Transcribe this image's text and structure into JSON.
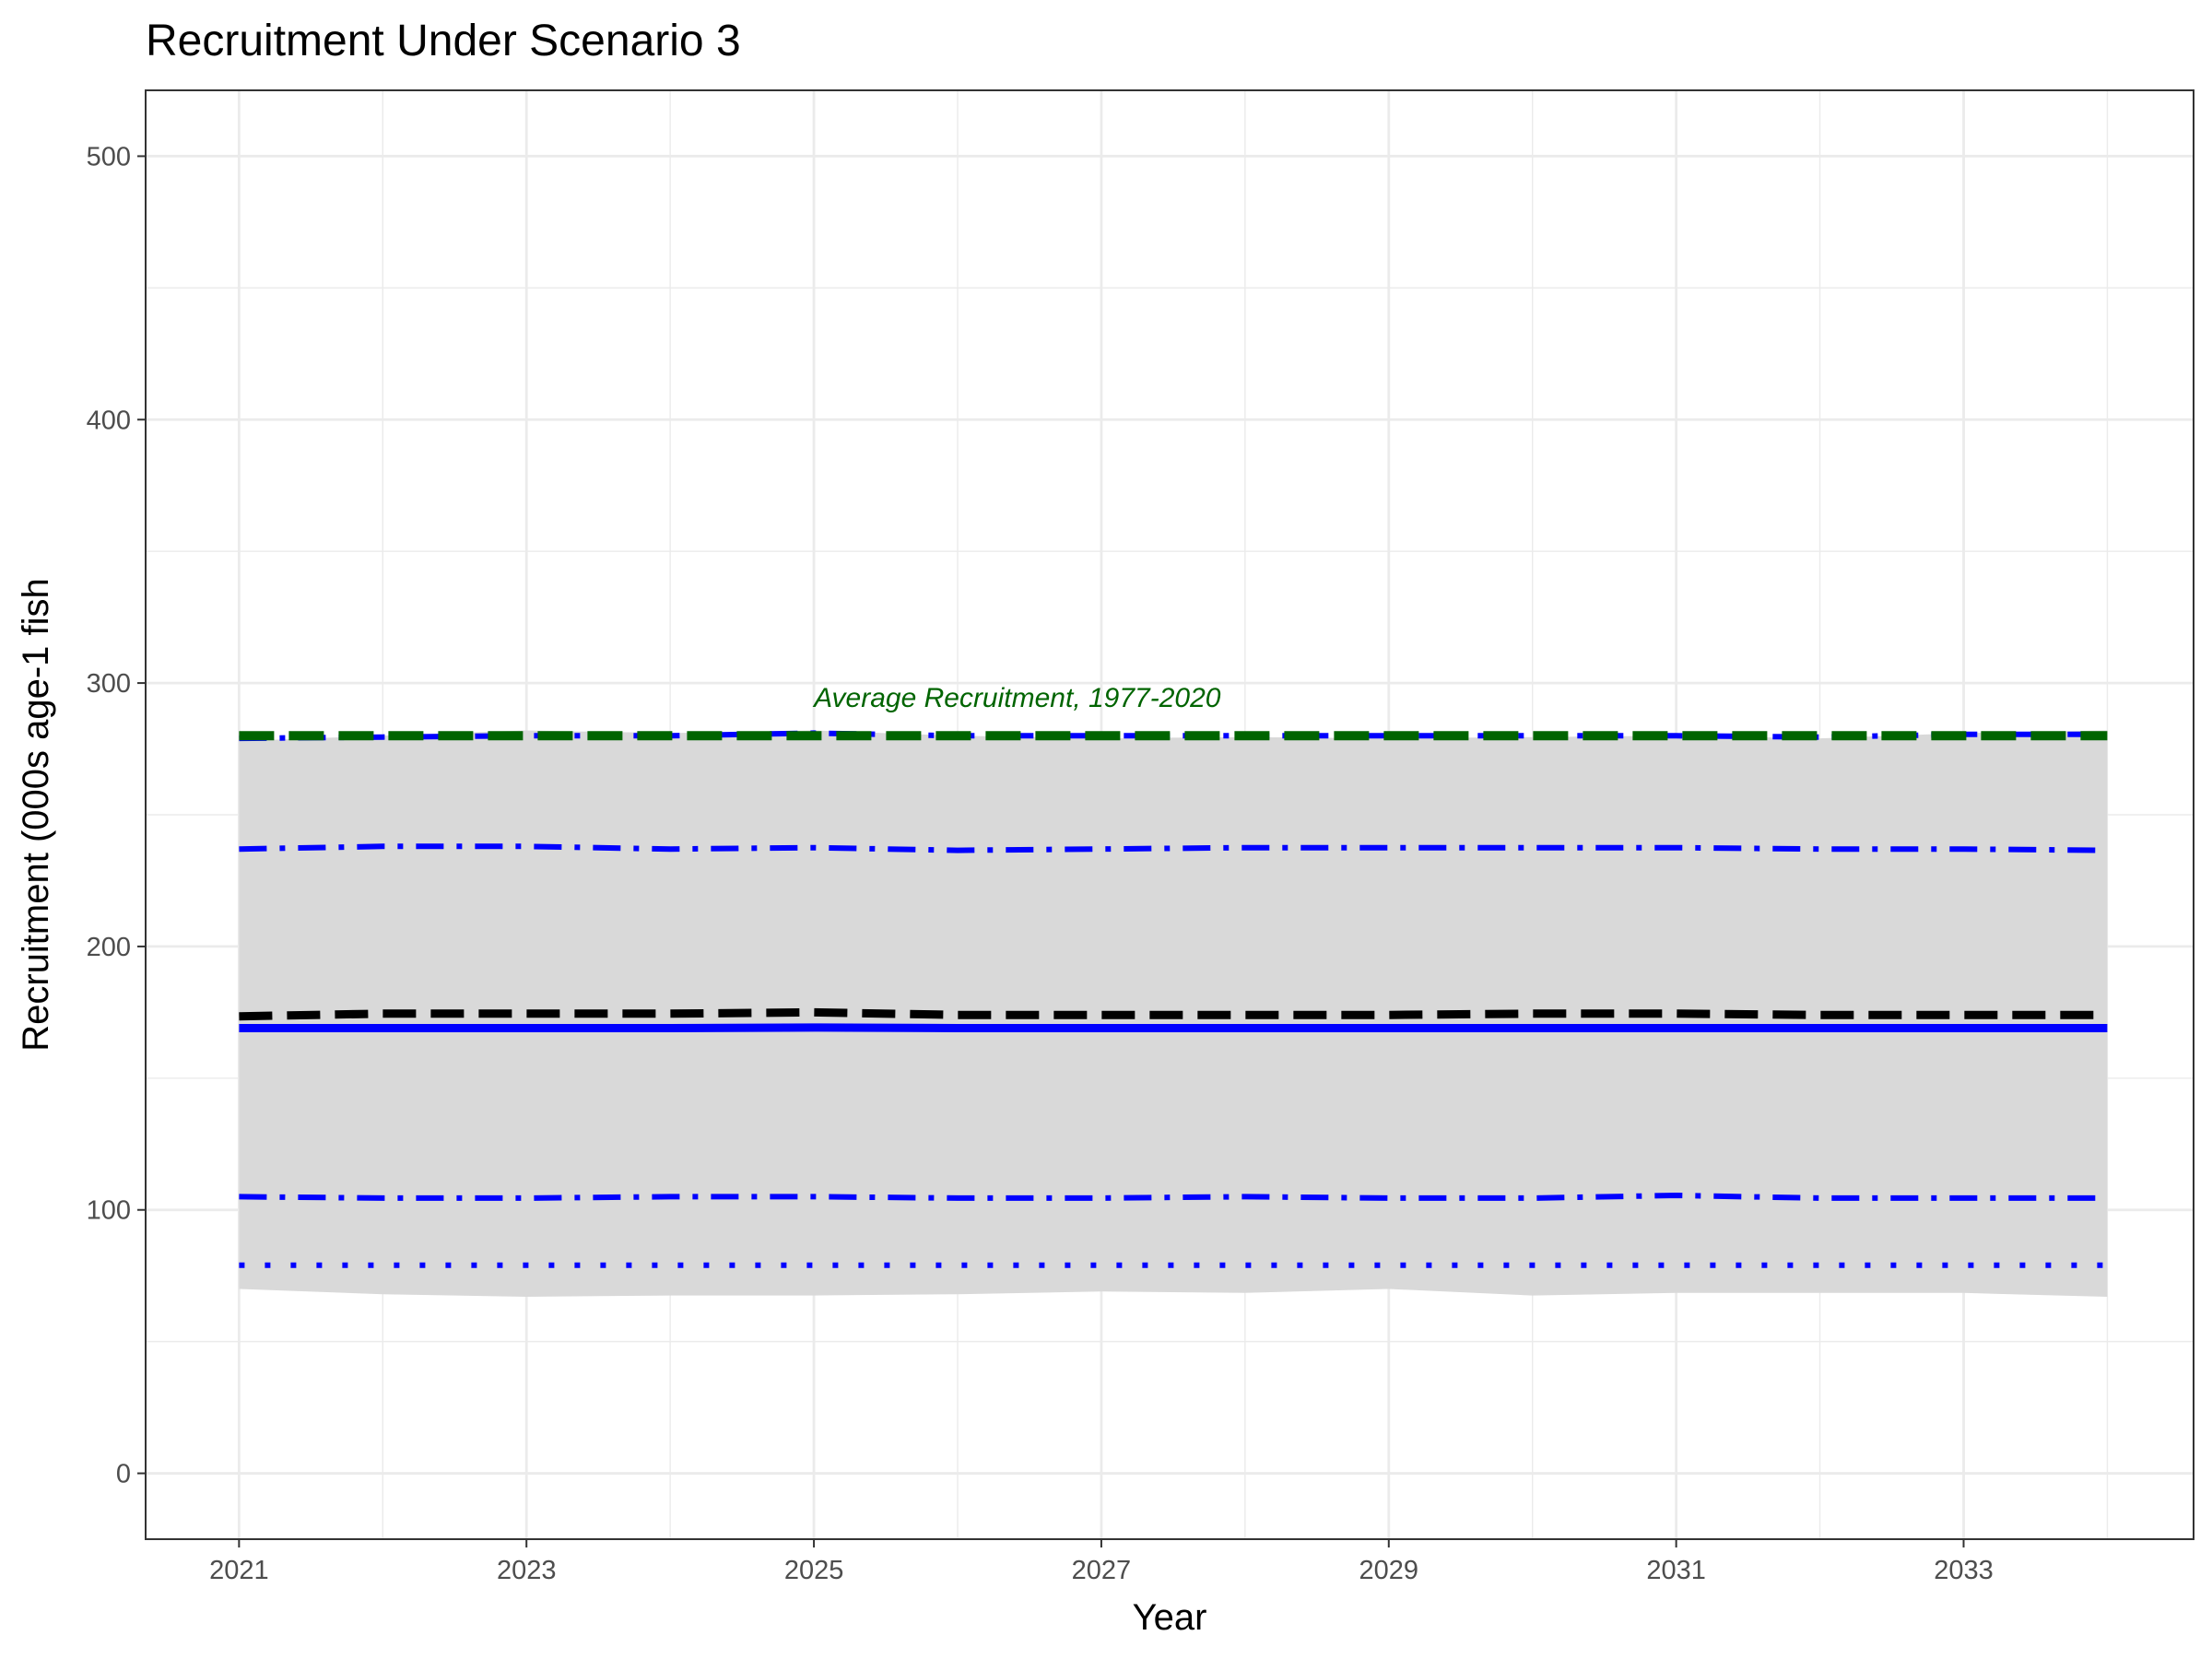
{
  "chart_data": {
    "type": "line",
    "title": "Recruitment Under Scenario 3",
    "xlabel": "Year",
    "ylabel": "Recruitment (000s age-1 fish",
    "xlim": [
      2020.35,
      2034.6
    ],
    "ylim": [
      -25,
      525
    ],
    "x": [
      2021,
      2022,
      2023,
      2024,
      2025,
      2026,
      2027,
      2028,
      2029,
      2030,
      2031,
      2032,
      2033,
      2034
    ],
    "x_ticks": [
      2021,
      2023,
      2025,
      2027,
      2029,
      2031,
      2033
    ],
    "x_tick_labels": [
      "2021",
      "2023",
      "2025",
      "2027",
      "2029",
      "2031",
      "2033"
    ],
    "y_ticks": [
      0,
      100,
      200,
      300,
      400,
      500
    ],
    "y_tick_labels": [
      "0",
      "100",
      "200",
      "300",
      "400",
      "500"
    ],
    "grid": true,
    "band": {
      "lower": [
        70,
        68,
        67,
        67.5,
        67.5,
        68,
        69,
        68.5,
        70,
        67.5,
        68.5,
        68.5,
        68.5,
        67
      ],
      "upper": [
        278,
        280,
        282,
        281,
        282,
        280,
        279,
        279.5,
        279,
        279.5,
        280,
        279,
        281,
        282
      ],
      "color": "#d9d9d9"
    },
    "series": [
      {
        "style": "solid",
        "color": "#0000ff",
        "values": [
          169,
          169,
          169,
          169,
          169.2,
          169,
          169,
          169,
          169,
          169,
          169,
          169,
          169,
          169
        ]
      },
      {
        "style": "longdash",
        "color": "#000000",
        "values": [
          173.5,
          174.5,
          174.5,
          174.5,
          175,
          174,
          174,
          174,
          174,
          174.5,
          174.5,
          174,
          174,
          174
        ]
      },
      {
        "style": "dotdash",
        "color": "#0000ff",
        "values": [
          237,
          238,
          238,
          237,
          237.5,
          236.5,
          237,
          237.5,
          237.5,
          237.5,
          237.5,
          237,
          237,
          236.5
        ]
      },
      {
        "style": "dotdash",
        "color": "#0000ff",
        "values": [
          105,
          104.5,
          104.5,
          105,
          105,
          104.5,
          104.5,
          105,
          104.5,
          104.5,
          105.5,
          104.5,
          104.5,
          104.5
        ]
      },
      {
        "style": "dotdash",
        "color": "#0000ff",
        "values": [
          279,
          279.5,
          280,
          280,
          281,
          280,
          280,
          280,
          280,
          280,
          280,
          279.5,
          280.5,
          280.5
        ]
      },
      {
        "style": "dotted",
        "color": "#0000ff",
        "values": [
          79,
          79,
          79,
          79,
          79,
          79,
          79,
          79,
          79,
          79,
          79,
          79,
          79,
          79
        ]
      },
      {
        "style": "dashed",
        "color": "#006400",
        "values": [
          280,
          280,
          280,
          280,
          280,
          280,
          280,
          280,
          280,
          280,
          280,
          280,
          280,
          280
        ]
      }
    ],
    "annotations": [
      {
        "text": "Average Recruitment, 1977-2020",
        "x": 2025,
        "y": 291,
        "color": "#006400"
      }
    ]
  }
}
